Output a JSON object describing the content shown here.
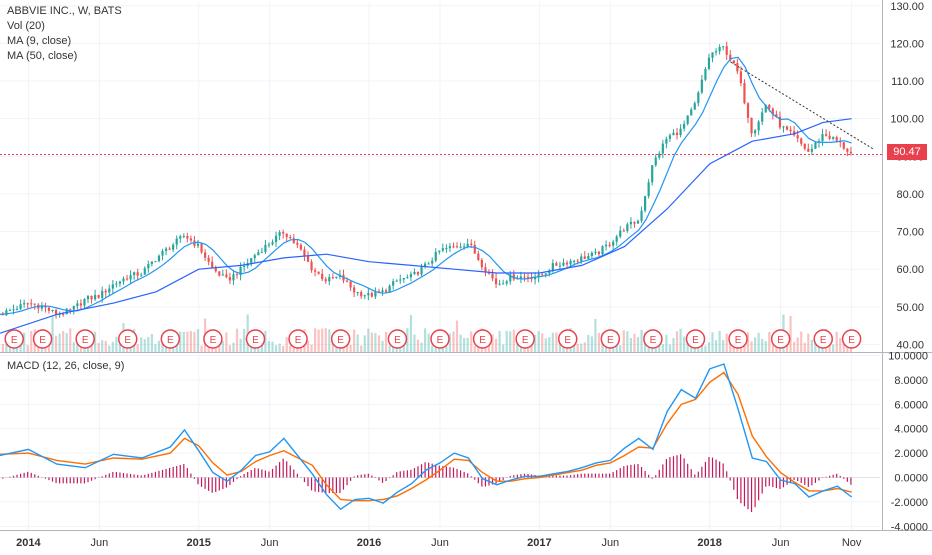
{
  "legend": {
    "symbol": "ABBVIE INC., W, BATS",
    "vol": "Vol (20)",
    "ma9": "MA (9, close)",
    "ma50": "MA (50, close)",
    "macd": "MACD (12, 26, close, 9)"
  },
  "last_price_label": "90.47",
  "colors": {
    "up": "#26a69a",
    "down": "#ef5350",
    "ma9": "#2196f3",
    "ma50": "#2962ff",
    "macd_line": "#2196f3",
    "signal_line": "#ff6d00",
    "histogram": "#c2185b",
    "last_price": "#e8414d"
  },
  "chart_data": [
    {
      "type": "candlestick",
      "panel": "price",
      "x_tick_labels": [
        "2014",
        "Jun",
        "2015",
        "Jun",
        "2016",
        "Jun",
        "2017",
        "Jun",
        "2018",
        "Jun",
        "Nov"
      ],
      "x_tick_months": [
        0,
        5,
        12,
        17,
        24,
        29,
        36,
        41,
        48,
        53,
        58
      ],
      "y_tick_labels": [
        "130.00",
        "120.00",
        "110.00",
        "100.00",
        "90.00",
        "80.00",
        "70.00",
        "60.00",
        "50.00",
        "40.00"
      ],
      "y_ticks": [
        130,
        120,
        110,
        100,
        90,
        80,
        70,
        60,
        50,
        40
      ],
      "ylim": [
        38,
        131
      ],
      "xlim": [
        -2,
        60
      ],
      "last_price": 90.47,
      "price_path": [
        [
          -2,
          48
        ],
        [
          0,
          51
        ],
        [
          1,
          50
        ],
        [
          2,
          48
        ],
        [
          3,
          49
        ],
        [
          4,
          52
        ],
        [
          5,
          53
        ],
        [
          6,
          56
        ],
        [
          7,
          58
        ],
        [
          8,
          59
        ],
        [
          9,
          63
        ],
        [
          10,
          66
        ],
        [
          11,
          69
        ],
        [
          12,
          66
        ],
        [
          13,
          60
        ],
        [
          14,
          57
        ],
        [
          15,
          60
        ],
        [
          16,
          64
        ],
        [
          17,
          67
        ],
        [
          18,
          70
        ],
        [
          19,
          66
        ],
        [
          20,
          60
        ],
        [
          21,
          57
        ],
        [
          22,
          58
        ],
        [
          23,
          54
        ],
        [
          24,
          53
        ],
        [
          25,
          54
        ],
        [
          26,
          57
        ],
        [
          27,
          58
        ],
        [
          28,
          61
        ],
        [
          29,
          65
        ],
        [
          30,
          66
        ],
        [
          31,
          67
        ],
        [
          32,
          61
        ],
        [
          33,
          56
        ],
        [
          34,
          58
        ],
        [
          35,
          58
        ],
        [
          36,
          58
        ],
        [
          37,
          61
        ],
        [
          38,
          62
        ],
        [
          39,
          63
        ],
        [
          40,
          64
        ],
        [
          41,
          67
        ],
        [
          42,
          71
        ],
        [
          43,
          73
        ],
        [
          44,
          88
        ],
        [
          45,
          95
        ],
        [
          46,
          97
        ],
        [
          47,
          104
        ],
        [
          48,
          117
        ],
        [
          49,
          119
        ],
        [
          50,
          112
        ],
        [
          51,
          96
        ],
        [
          52,
          104
        ],
        [
          53,
          98
        ],
        [
          54,
          95
        ],
        [
          55,
          91
        ],
        [
          56,
          96
        ],
        [
          57,
          94
        ],
        [
          58,
          90.5
        ]
      ],
      "ma50_path": [
        [
          -2,
          43
        ],
        [
          2,
          48
        ],
        [
          6,
          51
        ],
        [
          9,
          54
        ],
        [
          12,
          60
        ],
        [
          15,
          61
        ],
        [
          18,
          63
        ],
        [
          21,
          64
        ],
        [
          24,
          62
        ],
        [
          27,
          61
        ],
        [
          30,
          60
        ],
        [
          33,
          59
        ],
        [
          36,
          59
        ],
        [
          39,
          61
        ],
        [
          42,
          66
        ],
        [
          45,
          76
        ],
        [
          48,
          88
        ],
        [
          51,
          94
        ],
        [
          54,
          96
        ],
        [
          56,
          99
        ],
        [
          58,
          100
        ]
      ],
      "volume_relative": true,
      "earnings_markers": "E",
      "earnings_months": [
        -1,
        1,
        4,
        7,
        10,
        13,
        16,
        19,
        22,
        26,
        29,
        32,
        35,
        38,
        41,
        44,
        47,
        50,
        53,
        56,
        58
      ]
    },
    {
      "type": "macd",
      "panel": "macd",
      "series_names": [
        "MACD",
        "Signal",
        "Histogram"
      ],
      "y_tick_labels": [
        "10.0000",
        "8.0000",
        "6.0000",
        "4.0000",
        "2.0000",
        "0.0000",
        "-2.0000",
        "-4.0000"
      ],
      "y_ticks": [
        10,
        8,
        6,
        4,
        2,
        0,
        -2,
        -4
      ],
      "ylim": [
        -4.3,
        10.2
      ],
      "macd_path": [
        [
          -2,
          1.8
        ],
        [
          0,
          2.3
        ],
        [
          2,
          1.1
        ],
        [
          4,
          0.8
        ],
        [
          6,
          1.9
        ],
        [
          8,
          1.6
        ],
        [
          10,
          2.5
        ],
        [
          11,
          3.9
        ],
        [
          12,
          2.2
        ],
        [
          13,
          0.4
        ],
        [
          14,
          -0.3
        ],
        [
          15,
          0.6
        ],
        [
          16,
          1.8
        ],
        [
          17,
          2.1
        ],
        [
          18,
          3.2
        ],
        [
          20,
          0.3
        ],
        [
          21,
          -1.4
        ],
        [
          22,
          -2.6
        ],
        [
          23,
          -1.8
        ],
        [
          24,
          -1.7
        ],
        [
          25,
          -2.1
        ],
        [
          26,
          -1.2
        ],
        [
          27,
          -0.5
        ],
        [
          28,
          0.6
        ],
        [
          29,
          1.2
        ],
        [
          30,
          2.0
        ],
        [
          31,
          1.6
        ],
        [
          32,
          -0.1
        ],
        [
          33,
          -0.6
        ],
        [
          34,
          -0.2
        ],
        [
          35,
          0.1
        ],
        [
          36,
          0.1
        ],
        [
          37,
          0.3
        ],
        [
          38,
          0.5
        ],
        [
          39,
          0.8
        ],
        [
          40,
          1.2
        ],
        [
          41,
          1.4
        ],
        [
          42,
          2.4
        ],
        [
          43,
          3.2
        ],
        [
          44,
          2.3
        ],
        [
          45,
          5.4
        ],
        [
          46,
          7.2
        ],
        [
          47,
          6.5
        ],
        [
          48,
          8.9
        ],
        [
          49,
          9.3
        ],
        [
          50,
          5.6
        ],
        [
          51,
          1.6
        ],
        [
          52,
          1.3
        ],
        [
          53,
          -0.2
        ],
        [
          54,
          -0.5
        ],
        [
          55,
          -1.6
        ],
        [
          56,
          -1.1
        ],
        [
          57,
          -0.7
        ],
        [
          58,
          -1.6
        ]
      ],
      "signal_path": [
        [
          -2,
          1.9
        ],
        [
          0,
          2.0
        ],
        [
          2,
          1.4
        ],
        [
          4,
          1.1
        ],
        [
          6,
          1.6
        ],
        [
          8,
          1.5
        ],
        [
          10,
          2.0
        ],
        [
          11,
          3.2
        ],
        [
          12,
          2.6
        ],
        [
          13,
          1.2
        ],
        [
          14,
          0.2
        ],
        [
          15,
          0.5
        ],
        [
          16,
          1.3
        ],
        [
          17,
          1.8
        ],
        [
          18,
          2.2
        ],
        [
          20,
          1.0
        ],
        [
          21,
          -0.6
        ],
        [
          22,
          -1.8
        ],
        [
          23,
          -1.9
        ],
        [
          24,
          -1.9
        ],
        [
          25,
          -1.8
        ],
        [
          26,
          -1.5
        ],
        [
          27,
          -0.9
        ],
        [
          28,
          -0.2
        ],
        [
          29,
          0.6
        ],
        [
          30,
          1.5
        ],
        [
          31,
          1.4
        ],
        [
          32,
          0.4
        ],
        [
          33,
          -0.3
        ],
        [
          34,
          -0.3
        ],
        [
          35,
          -0.1
        ],
        [
          36,
          0.0
        ],
        [
          37,
          0.2
        ],
        [
          38,
          0.4
        ],
        [
          39,
          0.6
        ],
        [
          40,
          1.0
        ],
        [
          41,
          1.2
        ],
        [
          42,
          1.8
        ],
        [
          43,
          2.5
        ],
        [
          44,
          2.4
        ],
        [
          45,
          4.4
        ],
        [
          46,
          6.0
        ],
        [
          47,
          6.4
        ],
        [
          48,
          7.8
        ],
        [
          49,
          8.6
        ],
        [
          50,
          6.8
        ],
        [
          51,
          3.4
        ],
        [
          52,
          1.7
        ],
        [
          53,
          0.4
        ],
        [
          54,
          -0.4
        ],
        [
          55,
          -1.1
        ],
        [
          56,
          -1.1
        ],
        [
          57,
          -0.9
        ],
        [
          58,
          -1.2
        ]
      ]
    }
  ]
}
